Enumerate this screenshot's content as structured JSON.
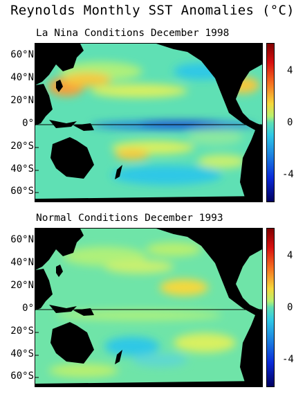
{
  "figure": {
    "title": "Reynolds Monthly SST Anomalies (°C)"
  },
  "panels": [
    {
      "subtitle_bold": "La Nina Conditions",
      "subtitle_date": "December 1998",
      "lat_labels": [
        "60°N",
        "40°N",
        "20°N",
        "0°",
        "20°S",
        "40°S",
        "60°S"
      ],
      "colorbar_labels": [
        "4",
        "0",
        "-4"
      ]
    },
    {
      "subtitle_bold": "Normal Conditions",
      "subtitle_date": "December 1993",
      "lat_labels": [
        "60°N",
        "40°N",
        "20°N",
        "0°",
        "20°S",
        "40°S",
        "60°S"
      ],
      "colorbar_labels": [
        "4",
        "0",
        "-4"
      ]
    }
  ],
  "colors": {
    "land": "#000000",
    "ocean_base": "#5fe0b4",
    "warm": "#f5c83c",
    "hot": "#e8452a",
    "cool": "#2fc8e6",
    "cold": "#0a2ad8"
  },
  "colorbar_range": [
    -6,
    6
  ]
}
